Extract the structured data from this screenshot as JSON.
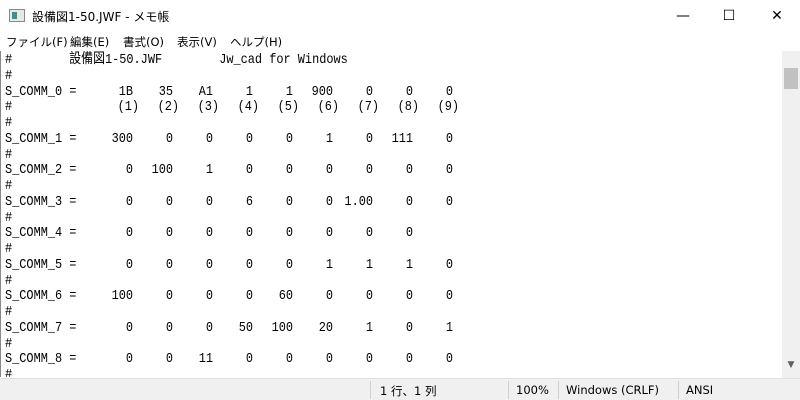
{
  "window": {
    "title": "設備図1-50.JWF - メモ帳",
    "minimize": "—",
    "maximize": "☐",
    "close": "✕"
  },
  "menu": [
    "ファイル(F)",
    "編集(E)",
    "書式(O)",
    "表示(V)",
    "ヘルプ(H)"
  ],
  "editor": {
    "header_line": "#        設備図1-50.JWF        Jw_cad for Windows",
    "comment": "#",
    "index_labels": [
      "(1)",
      "(2)",
      "(3)",
      "(4)",
      "(5)",
      "(6)",
      "(7)",
      "(8)",
      "(9)"
    ],
    "rows": [
      {
        "label": "S_COMM_0 =",
        "values": [
          "1B",
          "35",
          "A1",
          "1",
          "1",
          "900",
          "0",
          "0",
          "0"
        ]
      },
      {
        "label": "S_COMM_1 =",
        "values": [
          "300",
          "0",
          "0",
          "0",
          "0",
          "1",
          "0",
          "111",
          "0"
        ]
      },
      {
        "label": "S_COMM_2 =",
        "values": [
          "0",
          "100",
          "1",
          "0",
          "0",
          "0",
          "0",
          "0",
          "0"
        ]
      },
      {
        "label": "S_COMM_3 =",
        "values": [
          "0",
          "0",
          "0",
          "6",
          "0",
          "0",
          "1.00",
          "0",
          "0"
        ]
      },
      {
        "label": "S_COMM_4 =",
        "values": [
          "0",
          "0",
          "0",
          "0",
          "0",
          "0",
          "0",
          "0",
          ""
        ]
      },
      {
        "label": "S_COMM_5 =",
        "values": [
          "0",
          "0",
          "0",
          "0",
          "0",
          "1",
          "1",
          "1",
          "0"
        ]
      },
      {
        "label": "S_COMM_6 =",
        "values": [
          "100",
          "0",
          "0",
          "0",
          "60",
          "0",
          "0",
          "0",
          "0"
        ]
      },
      {
        "label": "S_COMM_7 =",
        "values": [
          "0",
          "0",
          "0",
          "50",
          "100",
          "20",
          "1",
          "0",
          "1"
        ]
      },
      {
        "label": "S_COMM_8 =",
        "values": [
          "0",
          "0",
          "11",
          "0",
          "0",
          "0",
          "0",
          "0",
          "0"
        ]
      }
    ]
  },
  "scrollbar": {
    "up": "▲",
    "down": "▼"
  },
  "status": {
    "position": "1 行、1 列",
    "zoom": "100%",
    "line_ending": "Windows (CRLF)",
    "encoding": "ANSI"
  }
}
